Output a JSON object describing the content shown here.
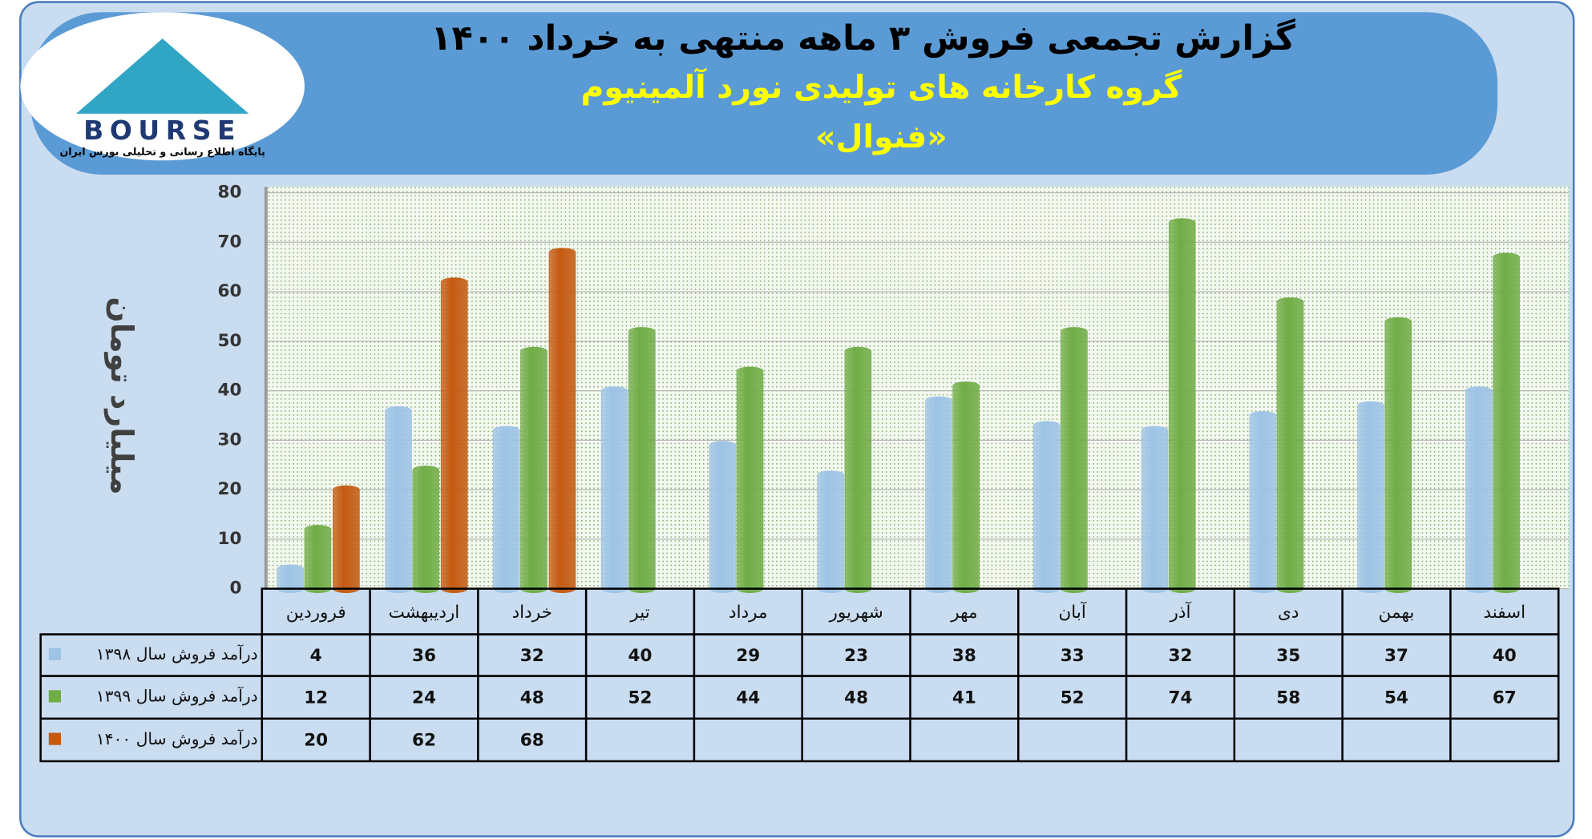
{
  "logo": {
    "name": "BOURSE",
    "tagline": "پایگاه اطلاع رسانی و تحلیلی بورس ایران"
  },
  "chart_data": {
    "type": "bar",
    "title": "گزارش تجمعی فروش ۳ ماهه منتهی به خرداد ۱۴۰۰",
    "subtitle": "گروه کارخانه های تولیدی نورد آلمینیوم",
    "company": "«فنوال»",
    "y_label": "میلیارد تومان",
    "categories": [
      "فروردین",
      "اردیبهشت",
      "خرداد",
      "تیر",
      "مرداد",
      "شهریور",
      "مهر",
      "آبان",
      "آذر",
      "دی",
      "بهمن",
      "اسفند"
    ],
    "series": [
      {
        "name": "درآمد فروش سال ۱۳۹۸",
        "color": "#9dc3e6",
        "values": [
          4,
          36,
          32,
          40,
          29,
          23,
          38,
          33,
          32,
          35,
          37,
          40
        ]
      },
      {
        "name": "درآمد فروش سال ۱۳۹۹",
        "color": "#70ad47",
        "values": [
          12,
          24,
          48,
          52,
          44,
          48,
          41,
          52,
          74,
          58,
          54,
          67
        ]
      },
      {
        "name": "درآمد فروش سال ۱۴۰۰",
        "color": "#c55a11",
        "values": [
          20,
          62,
          68,
          null,
          null,
          null,
          null,
          null,
          null,
          null,
          null,
          null
        ]
      }
    ],
    "ylim": [
      0,
      80
    ],
    "yticks": [
      0,
      10,
      20,
      30,
      40,
      50,
      60,
      70,
      80
    ],
    "grid": true,
    "data_table": true
  }
}
